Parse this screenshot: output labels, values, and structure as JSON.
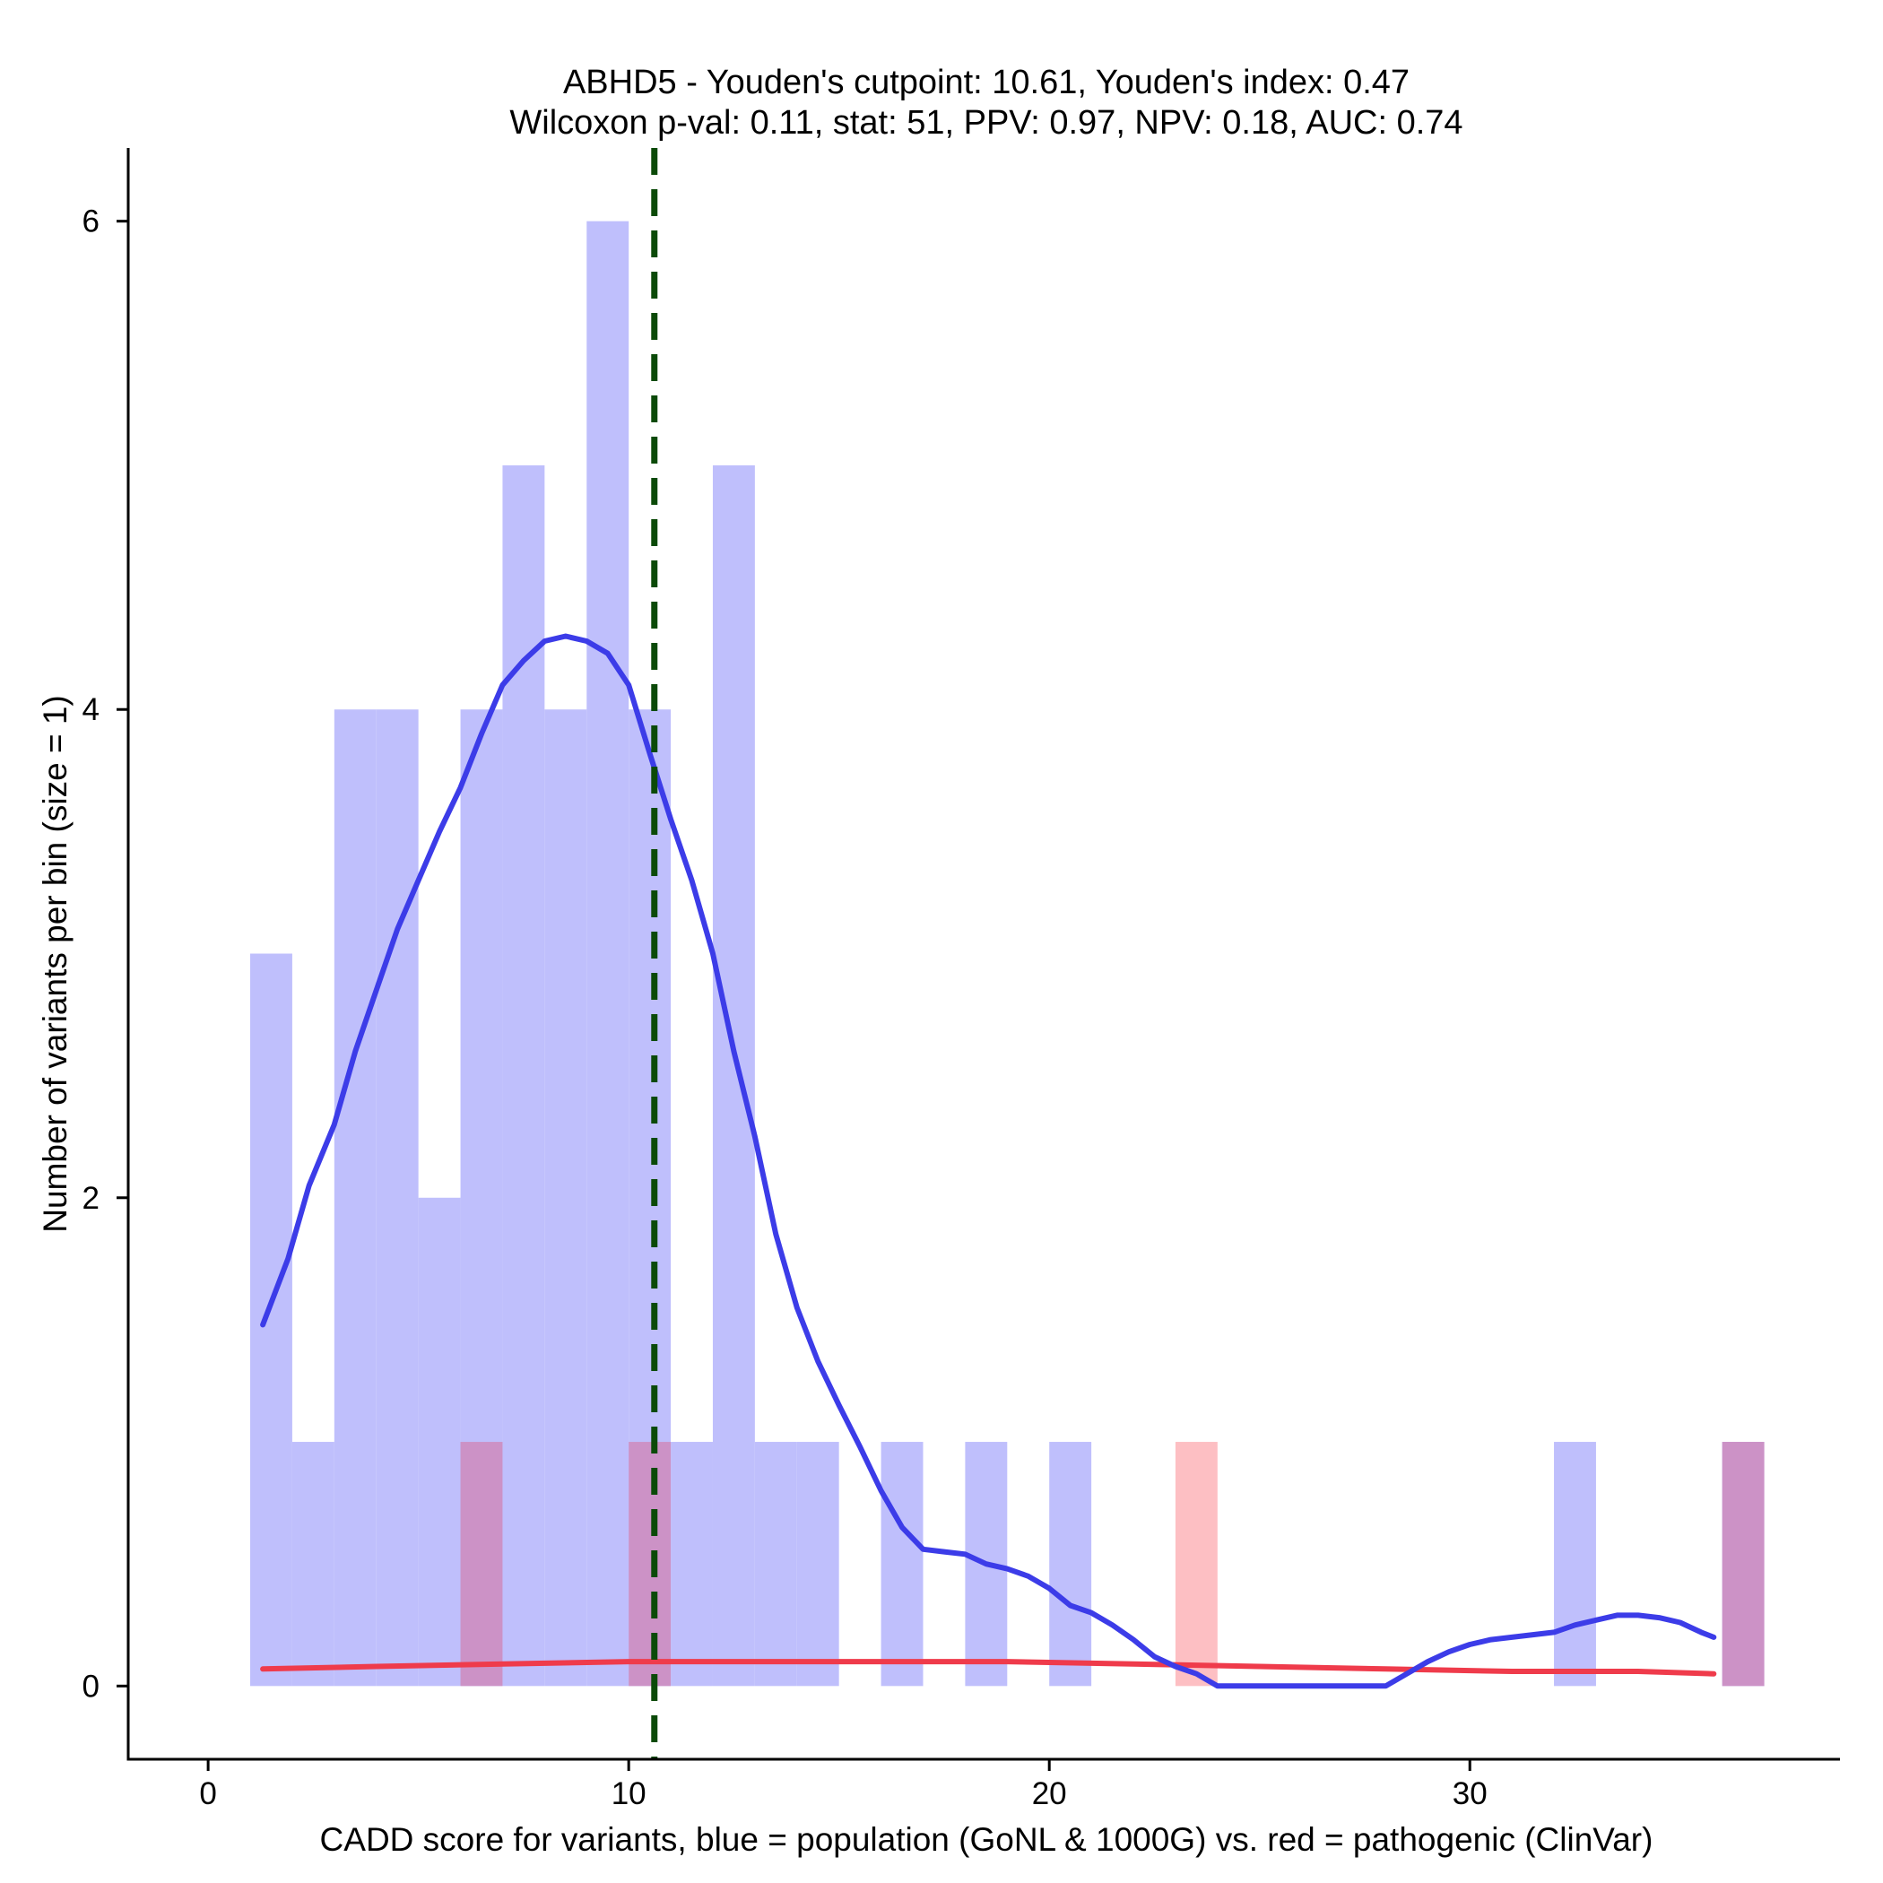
{
  "chart_data": {
    "type": "bar",
    "title_line1": "ABHD5 - Youden's cutpoint: 10.61, Youden's index: 0.47",
    "title_line2": "Wilcoxon p-val: 0.11, stat: 51, PPV: 0.97, NPV: 0.18, AUC: 0.74",
    "xlabel": "CADD score for variants, blue = population (GoNL & 1000G) vs. red = pathogenic (ClinVar)",
    "ylabel": "Number of variants per bin (size = 1)",
    "xlim": [
      -1.9,
      38.8
    ],
    "ylim": [
      -0.3,
      6.3
    ],
    "x_ticks": [
      0,
      10,
      20,
      30
    ],
    "y_ticks": [
      0,
      2,
      4,
      6
    ],
    "bin_width": 1,
    "cutpoint": 10.61,
    "colors": {
      "population_bar": "#bfbffc",
      "pathogenic_bar": "#fdbfc3",
      "overlap_bar": "#cc92c6",
      "population_density": "#3c3ce8",
      "pathogenic_density": "#ef3b4b",
      "cutpoint_line": "#0b4a08"
    },
    "series": [
      {
        "name": "population (GoNL & 1000G)",
        "bins": [
          {
            "x": 1,
            "count": 3
          },
          {
            "x": 2,
            "count": 1
          },
          {
            "x": 3,
            "count": 4
          },
          {
            "x": 4,
            "count": 4
          },
          {
            "x": 5,
            "count": 2
          },
          {
            "x": 6,
            "count": 4
          },
          {
            "x": 7,
            "count": 5
          },
          {
            "x": 8,
            "count": 4
          },
          {
            "x": 9,
            "count": 6
          },
          {
            "x": 10,
            "count": 4
          },
          {
            "x": 11,
            "count": 1
          },
          {
            "x": 12,
            "count": 5
          },
          {
            "x": 13,
            "count": 1
          },
          {
            "x": 14,
            "count": 1
          },
          {
            "x": 16,
            "count": 1
          },
          {
            "x": 18,
            "count": 1
          },
          {
            "x": 20,
            "count": 1
          },
          {
            "x": 32,
            "count": 1
          },
          {
            "x": 36,
            "count": 1
          }
        ]
      },
      {
        "name": "pathogenic (ClinVar)",
        "bins": [
          {
            "x": 6,
            "count": 1
          },
          {
            "x": 10,
            "count": 1
          },
          {
            "x": 23,
            "count": 1
          },
          {
            "x": 36,
            "count": 1
          }
        ]
      }
    ],
    "density_population": [
      [
        1.3,
        1.48
      ],
      [
        1.9,
        1.75
      ],
      [
        2.4,
        2.05
      ],
      [
        3.0,
        2.3
      ],
      [
        3.5,
        2.6
      ],
      [
        4.0,
        2.85
      ],
      [
        4.5,
        3.1
      ],
      [
        5.0,
        3.3
      ],
      [
        5.5,
        3.5
      ],
      [
        6.0,
        3.68
      ],
      [
        6.5,
        3.9
      ],
      [
        7.0,
        4.1
      ],
      [
        7.5,
        4.2
      ],
      [
        8.0,
        4.28
      ],
      [
        8.5,
        4.3
      ],
      [
        9.0,
        4.28
      ],
      [
        9.5,
        4.23
      ],
      [
        10.0,
        4.1
      ],
      [
        10.5,
        3.82
      ],
      [
        11.0,
        3.55
      ],
      [
        11.5,
        3.3
      ],
      [
        12.0,
        3.0
      ],
      [
        12.5,
        2.6
      ],
      [
        13.0,
        2.25
      ],
      [
        13.5,
        1.85
      ],
      [
        14.0,
        1.55
      ],
      [
        14.5,
        1.33
      ],
      [
        15.0,
        1.15
      ],
      [
        15.5,
        0.98
      ],
      [
        16.0,
        0.8
      ],
      [
        16.5,
        0.65
      ],
      [
        17.0,
        0.56
      ],
      [
        17.5,
        0.55
      ],
      [
        18.0,
        0.54
      ],
      [
        18.5,
        0.5
      ],
      [
        19.0,
        0.48
      ],
      [
        19.5,
        0.45
      ],
      [
        20.0,
        0.4
      ],
      [
        20.5,
        0.33
      ],
      [
        21.0,
        0.3
      ],
      [
        21.5,
        0.25
      ],
      [
        22.0,
        0.19
      ],
      [
        22.5,
        0.12
      ],
      [
        23.0,
        0.08
      ],
      [
        23.5,
        0.05
      ],
      [
        24.0,
        0.0
      ],
      [
        25.0,
        0.0
      ],
      [
        26.0,
        0.0
      ],
      [
        27.0,
        0.0
      ],
      [
        28.0,
        0.0
      ],
      [
        28.5,
        0.05
      ],
      [
        29.0,
        0.1
      ],
      [
        29.5,
        0.14
      ],
      [
        30.0,
        0.17
      ],
      [
        30.5,
        0.19
      ],
      [
        31.0,
        0.2
      ],
      [
        31.5,
        0.21
      ],
      [
        32.0,
        0.22
      ],
      [
        32.5,
        0.25
      ],
      [
        33.0,
        0.27
      ],
      [
        33.5,
        0.29
      ],
      [
        34.0,
        0.29
      ],
      [
        34.5,
        0.28
      ],
      [
        35.0,
        0.26
      ],
      [
        35.5,
        0.22
      ],
      [
        35.8,
        0.2
      ]
    ],
    "density_pathogenic": [
      [
        1.3,
        0.07
      ],
      [
        4.0,
        0.08
      ],
      [
        7.0,
        0.09
      ],
      [
        10.0,
        0.1
      ],
      [
        13.0,
        0.1
      ],
      [
        16.0,
        0.1
      ],
      [
        19.0,
        0.1
      ],
      [
        22.0,
        0.09
      ],
      [
        25.0,
        0.08
      ],
      [
        28.0,
        0.07
      ],
      [
        31.0,
        0.06
      ],
      [
        34.0,
        0.06
      ],
      [
        35.8,
        0.05
      ]
    ]
  }
}
